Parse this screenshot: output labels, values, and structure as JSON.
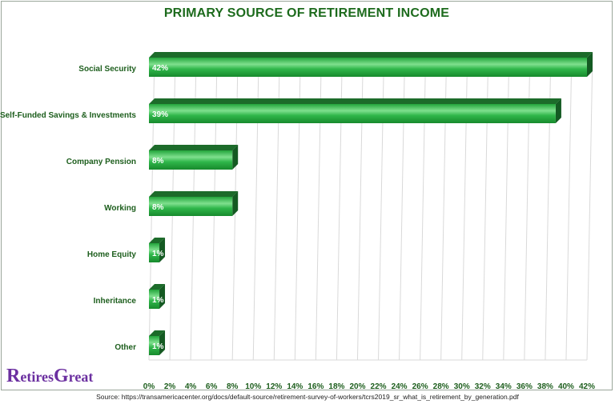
{
  "chart_data": {
    "type": "bar",
    "orientation": "horizontal",
    "title": "PRIMARY SOURCE OF RETIREMENT INCOME",
    "categories": [
      "Social Security",
      "Self-Funded Savings & Investments",
      "Company Pension",
      "Working",
      "Home Equity",
      "Inheritance",
      "Other"
    ],
    "values": [
      42,
      39,
      8,
      8,
      1,
      1,
      1
    ],
    "data_labels": [
      "42%",
      "39%",
      "8%",
      "8%",
      "1%",
      "1%",
      "1%"
    ],
    "xlim": [
      0,
      42
    ],
    "x_tick_values": [
      0,
      2,
      4,
      6,
      8,
      10,
      12,
      14,
      16,
      18,
      20,
      22,
      24,
      26,
      28,
      30,
      32,
      34,
      36,
      38,
      40,
      42
    ],
    "x_tick_labels": [
      "0%",
      "2%",
      "4%",
      "6%",
      "8%",
      "10%",
      "12%",
      "14%",
      "16%",
      "18%",
      "20%",
      "22%",
      "24%",
      "26%",
      "28%",
      "30%",
      "32%",
      "34%",
      "36%",
      "38%",
      "40%",
      "42%"
    ],
    "grid": true,
    "legend": "none",
    "colors": {
      "bar": "#1fa33a",
      "bar_highlight": "#7fe08e",
      "bar_top": "#1c6b2a",
      "bar_end": "#145a22",
      "label": "#1d5e1d",
      "grid": "#d9d9d9"
    }
  },
  "logo": {
    "part1_big": "R",
    "part1": "etires",
    "part2_big": "G",
    "part2": "reat"
  },
  "source": "Source: https://transamericacenter.org/docs/default-source/retirement-survey-of-workers/tcrs2019_sr_what_is_retirement_by_generation.pdf"
}
